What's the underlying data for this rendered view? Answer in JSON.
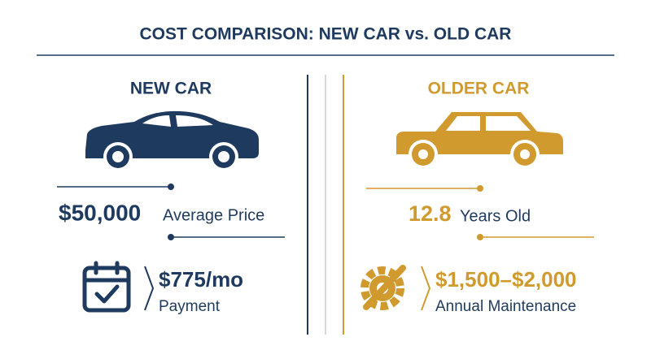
{
  "header": {
    "title": "COST COMPARISON: NEW CAR vs. OLD CAR"
  },
  "columns": [
    {
      "heading": "NEW CAR",
      "stat": {
        "value": "$50,000",
        "label": "Average Price"
      },
      "detail": {
        "value": "$775/mo",
        "label": "Payment"
      }
    },
    {
      "heading": "OLDER CAR",
      "stat": {
        "value": "12.8",
        "label": "Years Old"
      },
      "detail": {
        "value": "$1,500–$2,000",
        "label": "Annual Maintenance"
      }
    }
  ]
}
